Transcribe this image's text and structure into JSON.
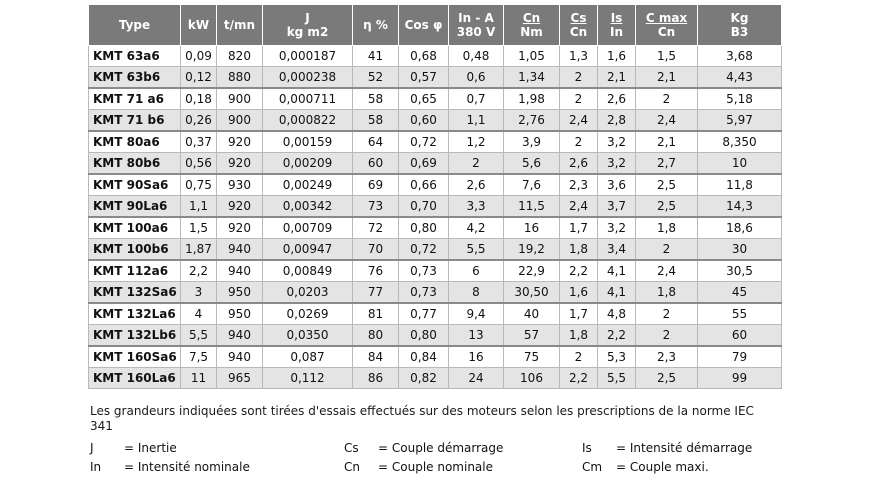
{
  "headers": [
    {
      "lines": [
        "Type"
      ]
    },
    {
      "lines": [
        "kW"
      ]
    },
    {
      "lines": [
        "t/mn"
      ]
    },
    {
      "lines": [
        "J",
        "kg m2"
      ]
    },
    {
      "lines": [
        "η %"
      ]
    },
    {
      "lines": [
        "Cos φ"
      ]
    },
    {
      "lines": [
        "In - A",
        "380 V"
      ]
    },
    {
      "lines": [
        "Cn",
        "Nm"
      ],
      "underline_first": true
    },
    {
      "lines": [
        "Cs",
        "Cn"
      ],
      "underline_first": true
    },
    {
      "lines": [
        "Is",
        "In"
      ],
      "underline_first": true
    },
    {
      "lines": [
        "C max",
        "Cn"
      ],
      "underline_first": true
    },
    {
      "lines": [
        "Kg",
        "B3"
      ]
    }
  ],
  "rows": [
    [
      "KMT 63a6",
      "0,09",
      "820",
      "0,000187",
      "41",
      "0,68",
      "0,48",
      "1,05",
      "1,3",
      "1,6",
      "1,5",
      "3,68"
    ],
    [
      "KMT 63b6",
      "0,12",
      "880",
      "0,000238",
      "52",
      "0,57",
      "0,6",
      "1,34",
      "2",
      "2,1",
      "2,1",
      "4,43"
    ],
    [
      "KMT 71 a6",
      "0,18",
      "900",
      "0,000711",
      "58",
      "0,65",
      "0,7",
      "1,98",
      "2",
      "2,6",
      "2",
      "5,18"
    ],
    [
      "KMT 71 b6",
      "0,26",
      "900",
      "0,000822",
      "58",
      "0,60",
      "1,1",
      "2,76",
      "2,4",
      "2,8",
      "2,4",
      "5,97"
    ],
    [
      "KMT 80a6",
      "0,37",
      "920",
      "0,00159",
      "64",
      "0,72",
      "1,2",
      "3,9",
      "2",
      "3,2",
      "2,1",
      "8,350"
    ],
    [
      "KMT 80b6",
      "0,56",
      "920",
      "0,00209",
      "60",
      "0,69",
      "2",
      "5,6",
      "2,6",
      "3,2",
      "2,7",
      "10"
    ],
    [
      "KMT 90Sa6",
      "0,75",
      "930",
      "0,00249",
      "69",
      "0,66",
      "2,6",
      "7,6",
      "2,3",
      "3,6",
      "2,5",
      "11,8"
    ],
    [
      "KMT 90La6",
      "1,1",
      "920",
      "0,00342",
      "73",
      "0,70",
      "3,3",
      "11,5",
      "2,4",
      "3,7",
      "2,5",
      "14,3"
    ],
    [
      "KMT 100a6",
      "1,5",
      "920",
      "0,00709",
      "72",
      "0,80",
      "4,2",
      "16",
      "1,7",
      "3,2",
      "1,8",
      "18,6"
    ],
    [
      "KMT 100b6",
      "1,87",
      "940",
      "0,00947",
      "70",
      "0,72",
      "5,5",
      "19,2",
      "1,8",
      "3,4",
      "2",
      "30"
    ],
    [
      "KMT 112a6",
      "2,2",
      "940",
      "0,00849",
      "76",
      "0,73",
      "6",
      "22,9",
      "2,2",
      "4,1",
      "2,4",
      "30,5"
    ],
    [
      "KMT 132Sa6",
      "3",
      "950",
      "0,0203",
      "77",
      "0,73",
      "8",
      "30,50",
      "1,6",
      "4,1",
      "1,8",
      "45"
    ],
    [
      "KMT 132La6",
      "4",
      "950",
      "0,0269",
      "81",
      "0,77",
      "9,4",
      "40",
      "1,7",
      "4,8",
      "2",
      "55"
    ],
    [
      "KMT 132Lb6",
      "5,5",
      "940",
      "0,0350",
      "80",
      "0,80",
      "13",
      "57",
      "1,8",
      "2,2",
      "2",
      "60"
    ],
    [
      "KMT 160Sa6",
      "7,5",
      "940",
      "0,087",
      "84",
      "0,84",
      "16",
      "75",
      "2",
      "5,3",
      "2,3",
      "79"
    ],
    [
      "KMT 160La6",
      "11",
      "965",
      "0,112",
      "86",
      "0,82",
      "24",
      "106",
      "2,2",
      "5,5",
      "2,5",
      "99"
    ]
  ],
  "note": "Les grandeurs indiquées sont tirées d'essais effectués sur des moteurs selon les prescriptions de la norme IEC 341",
  "legend": [
    {
      "sym": "J",
      "text": "= Inertie"
    },
    {
      "sym": "Cs",
      "text": "= Couple démarrage"
    },
    {
      "sym": "Is",
      "text": "= Intensité démarrage"
    },
    {
      "sym": "In",
      "text": "= Intensité nominale"
    },
    {
      "sym": "Cn",
      "text": "= Couple nominale"
    },
    {
      "sym": "Cm",
      "text": "= Couple maxi."
    }
  ]
}
